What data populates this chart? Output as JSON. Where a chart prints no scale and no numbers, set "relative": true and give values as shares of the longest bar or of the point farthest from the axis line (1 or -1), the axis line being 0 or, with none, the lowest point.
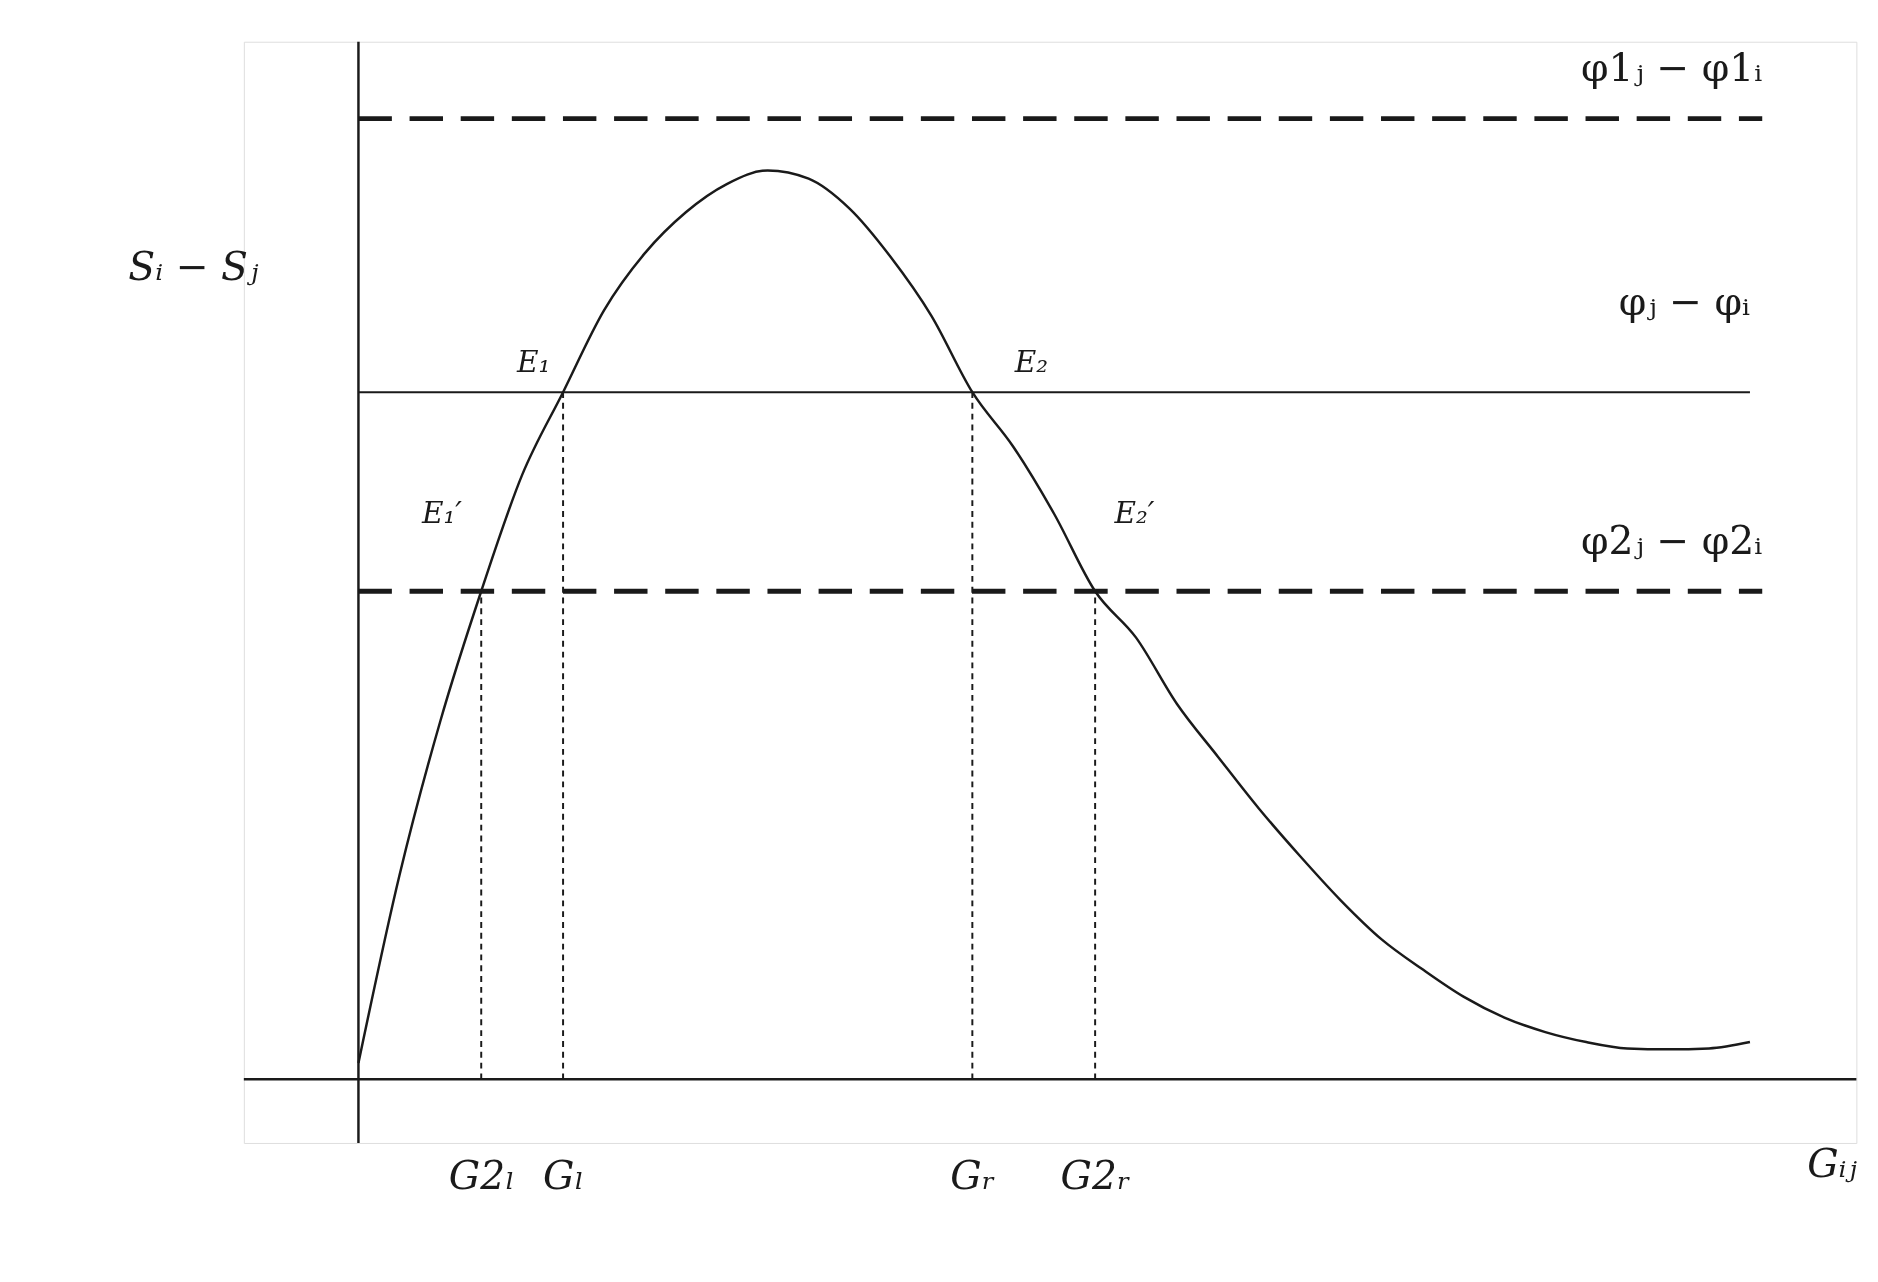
{
  "chart_data": {
    "type": "line",
    "relative": true,
    "xlabel": "Gᵢⱼ",
    "ylabel": "Sᵢ − Sⱼ",
    "line_style": "solid",
    "categories": [
      null,
      null,
      null,
      "G2ₗ",
      null,
      "Gₗ",
      null,
      null,
      null,
      null,
      null,
      null,
      null,
      null,
      null,
      "Gᵣ",
      null,
      null,
      "G2ᵣ",
      null,
      null,
      null,
      null,
      null,
      null,
      null,
      null,
      null,
      null,
      null,
      null,
      null,
      null,
      null,
      null
    ],
    "series": [
      {
        "color": "#1a1a1a",
        "values": [
          0.018,
          0.224,
          0.394,
          0.537,
          0.665,
          0.756,
          0.846,
          0.909,
          0.954,
          0.985,
          1.0,
          0.991,
          0.958,
          0.905,
          0.84,
          0.756,
          0.696,
          0.622,
          0.537,
          0.486,
          0.413,
          0.355,
          0.298,
          0.246,
          0.197,
          0.154,
          0.121,
          0.091,
          0.068,
          0.052,
          0.041,
          0.034,
          0.033,
          0.034,
          0.041
        ]
      }
    ],
    "ref_lines": [
      {
        "axis": "y",
        "value": 1.057,
        "label": "φ1ⱼ − φ1ᵢ",
        "line_style": "dashed"
      },
      {
        "axis": "y",
        "value": 0.756,
        "label": "φⱼ − φᵢ",
        "line_style": "solid"
      },
      {
        "axis": "y",
        "value": 0.537,
        "label": "φ2ⱼ − φ2ᵢ",
        "line_style": "dashed"
      },
      {
        "axis": "x",
        "value": "G2ₗ",
        "line_style": "dotted"
      },
      {
        "axis": "x",
        "value": "Gₗ",
        "line_style": "dotted"
      },
      {
        "axis": "x",
        "value": "Gᵣ",
        "line_style": "dotted"
      },
      {
        "axis": "x",
        "value": "G2ᵣ",
        "line_style": "dotted"
      }
    ],
    "annotations": [
      {
        "text": "E₁",
        "x": "Gₗ",
        "y": 0.756
      },
      {
        "text": "E₂",
        "x": "Gᵣ",
        "y": 0.756
      },
      {
        "text": "E₁′",
        "x": "G2ₗ",
        "y": 0.537
      },
      {
        "text": "E₂′",
        "x": "G2ᵣ",
        "y": 0.537
      }
    ]
  }
}
